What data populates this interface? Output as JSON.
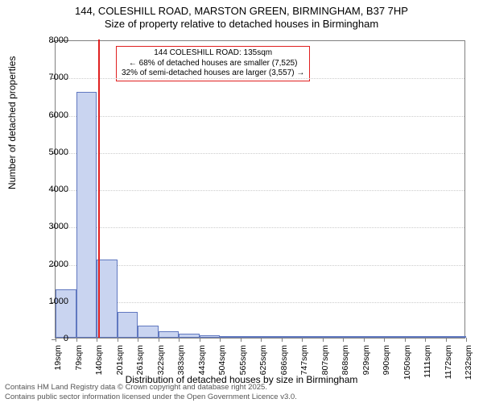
{
  "title": {
    "line1": "144, COLESHILL ROAD, MARSTON GREEN, BIRMINGHAM, B37 7HP",
    "line2": "Size of property relative to detached houses in Birmingham"
  },
  "chart": {
    "type": "histogram",
    "y_axis_label": "Number of detached properties",
    "x_axis_label": "Distribution of detached houses by size in Birmingham",
    "ylim": [
      0,
      8000
    ],
    "ytick_step": 1000,
    "yticks": [
      0,
      1000,
      2000,
      3000,
      4000,
      5000,
      6000,
      7000,
      8000
    ],
    "xticks": [
      "19sqm",
      "79sqm",
      "140sqm",
      "201sqm",
      "261sqm",
      "322sqm",
      "383sqm",
      "443sqm",
      "504sqm",
      "565sqm",
      "625sqm",
      "686sqm",
      "747sqm",
      "807sqm",
      "868sqm",
      "929sqm",
      "990sqm",
      "1050sqm",
      "1111sqm",
      "1172sqm",
      "1232sqm"
    ],
    "bar_values": [
      1300,
      6600,
      2100,
      700,
      320,
      180,
      110,
      70,
      50,
      35,
      25,
      18,
      13,
      10,
      8,
      6,
      5,
      4,
      3,
      2
    ],
    "bar_fill": "#c9d4f0",
    "bar_stroke": "#6078c0",
    "grid_color": "#cccccc",
    "axis_color": "#808080",
    "background_color": "#ffffff",
    "marker": {
      "position_bin": 2,
      "offset_within_bin": 0.08,
      "color": "#e02020",
      "height_value": 8000
    },
    "callout": {
      "border_color": "#e02020",
      "line1": "144 COLESHILL ROAD: 135sqm",
      "line2": "← 68% of detached houses are smaller (7,525)",
      "line3": "32% of semi-detached houses are larger (3,557) →"
    }
  },
  "footer": {
    "line1": "Contains HM Land Registry data © Crown copyright and database right 2025.",
    "line2": "Contains public sector information licensed under the Open Government Licence v3.0."
  },
  "fontsize": {
    "title": 13,
    "axis_label": 12,
    "tick": 11,
    "callout": 10,
    "footer": 9.5
  }
}
